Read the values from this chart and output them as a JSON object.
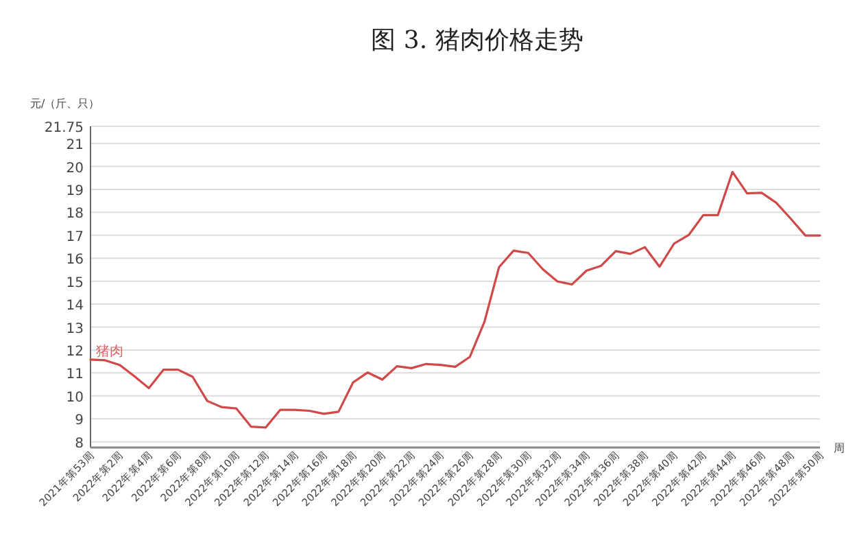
{
  "chart_data": {
    "type": "line",
    "title": "图 3. 猪肉价格走势",
    "ylabel": "元/（斤、只）",
    "xlabel": "周",
    "categories": [
      "2021年第53周",
      null,
      "2022年第2周",
      null,
      "2022年第4周",
      null,
      "2022年第6周",
      null,
      "2022年第8周",
      null,
      "2022年第10周",
      null,
      "2022年第12周",
      null,
      "2022年第14周",
      null,
      "2022年第16周",
      null,
      "2022年第18周",
      null,
      "2022年第20周",
      null,
      "2022年第22周",
      null,
      "2022年第24周",
      null,
      "2022年第26周",
      null,
      "2022年第28周",
      null,
      "2022年第30周",
      null,
      "2022年第32周",
      null,
      "2022年第34周",
      null,
      "2022年第36周",
      null,
      "2022年第38周",
      null,
      "2022年第40周",
      null,
      "2022年第42周",
      null,
      "2022年第44周",
      null,
      "2022年第46周",
      null,
      "2022年第48周",
      null,
      "2022年第50周"
    ],
    "series": [
      {
        "name": "猪肉",
        "color": "#d04848",
        "values": [
          11.58,
          11.55,
          11.35,
          10.86,
          10.34,
          11.14,
          11.14,
          10.83,
          9.78,
          9.51,
          9.45,
          8.66,
          8.62,
          9.39,
          9.39,
          9.35,
          9.22,
          9.31,
          10.59,
          11.02,
          10.71,
          11.29,
          11.21,
          11.39,
          11.35,
          11.27,
          11.7,
          13.23,
          15.61,
          16.33,
          16.23,
          15.52,
          14.99,
          14.86,
          15.46,
          15.67,
          16.31,
          16.19,
          16.48,
          15.63,
          16.64,
          17.01,
          17.88,
          17.88,
          19.76,
          18.83,
          18.85,
          18.42,
          17.72,
          16.99,
          16.99
        ]
      }
    ],
    "ylim": [
      7.75,
      21.75
    ],
    "yticks": [
      8,
      9,
      10,
      11,
      12,
      13,
      14,
      15,
      16,
      17,
      18,
      19,
      20,
      21,
      21.75
    ],
    "grid": "y",
    "marker": "none",
    "line_style": "solid",
    "legend": false
  }
}
